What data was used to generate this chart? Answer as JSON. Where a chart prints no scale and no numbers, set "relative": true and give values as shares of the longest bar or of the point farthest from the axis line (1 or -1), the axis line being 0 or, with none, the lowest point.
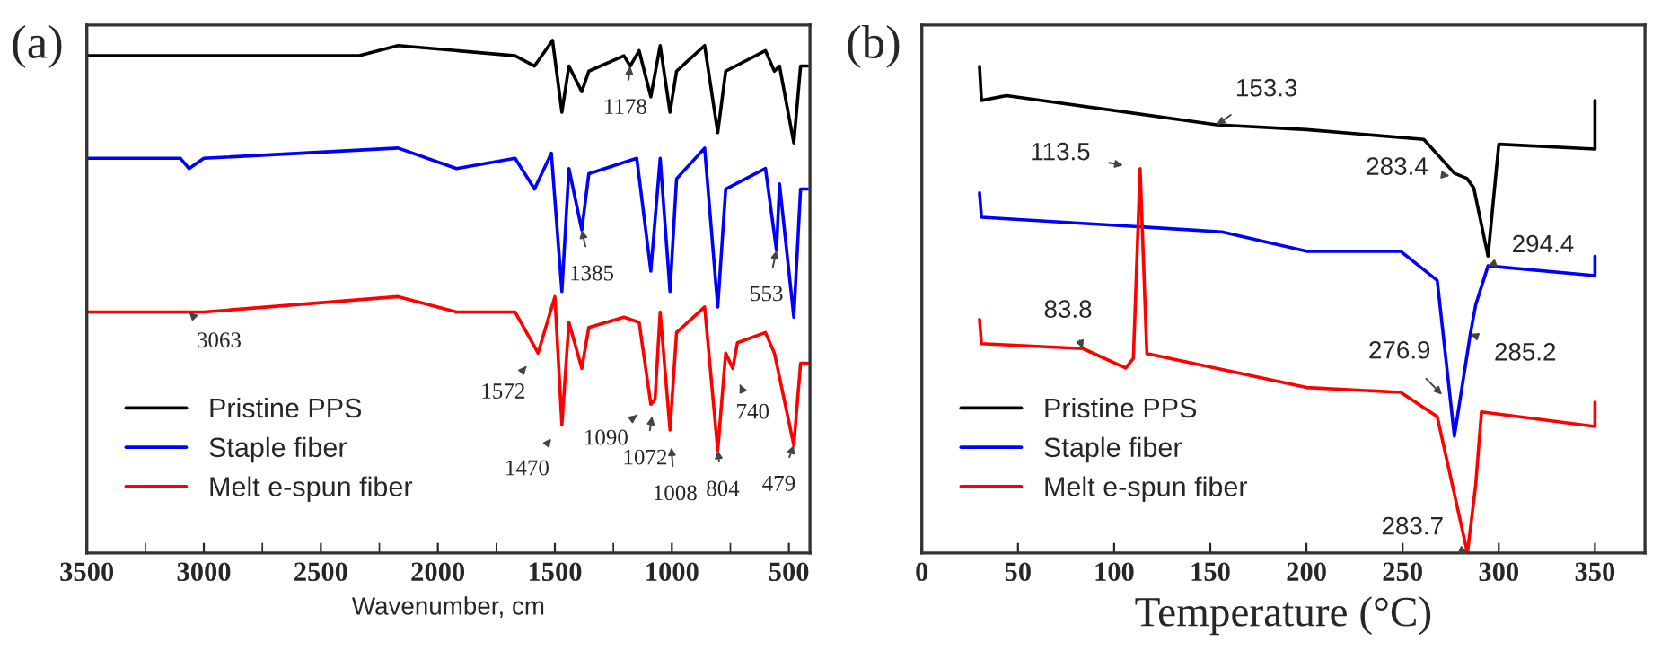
{
  "chart_data": [
    {
      "type": "line",
      "title": "(a)",
      "xlabel": "Wavenumber, cm",
      "relative": true,
      "legend": "bottom left",
      "grid": false,
      "xlim": [
        3500,
        410
      ],
      "xticks": [
        3500,
        {
          "value": 3250,
          "label": null
        },
        3000,
        {
          "value": 2750,
          "label": null
        },
        2500,
        {
          "value": 2250,
          "label": null
        },
        2000,
        {
          "value": 1750,
          "label": null
        },
        1500,
        {
          "value": 1250,
          "label": null
        },
        1000,
        {
          "value": 750,
          "label": null
        },
        500
      ],
      "series": [
        {
          "name": "Pristine PPS",
          "color": "#000000",
          "x": [
            3500,
            3100,
            2340,
            2170,
            1670,
            1587,
            1510,
            1470,
            1440,
            1385,
            1355,
            1205,
            1178,
            1140,
            1090,
            1050,
            1008,
            980,
            860,
            804,
            770,
            600,
            562,
            540,
            479,
            450,
            420
          ],
          "values": [
            0.97,
            0.97,
            0.97,
            0.99,
            0.97,
            0.95,
            1.0,
            0.86,
            0.95,
            0.9,
            0.94,
            0.97,
            0.95,
            0.98,
            0.89,
            0.99,
            0.86,
            0.94,
            0.99,
            0.82,
            0.94,
            0.98,
            0.94,
            0.95,
            0.8,
            0.95,
            0.95
          ]
        },
        {
          "name": "Staple fiber",
          "color": "#0000ff",
          "x": [
            3500,
            3100,
            3063,
            3000,
            2170,
            1920,
            1670,
            1587,
            1515,
            1470,
            1440,
            1385,
            1355,
            1150,
            1090,
            1050,
            1008,
            980,
            860,
            804,
            770,
            600,
            553,
            540,
            479,
            450,
            420
          ],
          "values": [
            0.77,
            0.77,
            0.75,
            0.77,
            0.79,
            0.75,
            0.77,
            0.71,
            0.78,
            0.51,
            0.75,
            0.63,
            0.74,
            0.77,
            0.55,
            0.77,
            0.51,
            0.73,
            0.79,
            0.48,
            0.71,
            0.75,
            0.59,
            0.72,
            0.46,
            0.71,
            0.71
          ]
        },
        {
          "name": "Melt e-spun fiber",
          "color": "#ff0000",
          "x": [
            3500,
            3100,
            3063,
            3000,
            2170,
            1920,
            1670,
            1572,
            1500,
            1470,
            1440,
            1385,
            1355,
            1205,
            1140,
            1090,
            1072,
            1050,
            1008,
            980,
            860,
            804,
            770,
            740,
            720,
            600,
            562,
            479,
            450,
            420
          ],
          "values": [
            0.47,
            0.47,
            0.47,
            0.47,
            0.5,
            0.47,
            0.47,
            0.39,
            0.5,
            0.25,
            0.45,
            0.36,
            0.44,
            0.46,
            0.45,
            0.29,
            0.3,
            0.47,
            0.24,
            0.43,
            0.48,
            0.2,
            0.39,
            0.36,
            0.41,
            0.43,
            0.39,
            0.21,
            0.37,
            0.37
          ]
        }
      ],
      "annotations": [
        {
          "text": "1178",
          "x": 1178,
          "y": 0.95
        },
        {
          "text": "1385",
          "x": 1385,
          "y": 0.63
        },
        {
          "text": "553",
          "x": 553,
          "y": 0.59
        },
        {
          "text": "3063",
          "x": 3063,
          "y": 0.47
        },
        {
          "text": "1572",
          "x": 1572,
          "y": 0.39
        },
        {
          "text": "1470",
          "x": 1470,
          "y": 0.25
        },
        {
          "text": "1090",
          "x": 1090,
          "y": 0.29
        },
        {
          "text": "1072",
          "x": 1072,
          "y": 0.3
        },
        {
          "text": "1008",
          "x": 1008,
          "y": 0.24
        },
        {
          "text": "804",
          "x": 804,
          "y": 0.2
        },
        {
          "text": "740",
          "x": 740,
          "y": 0.36
        },
        {
          "text": "479",
          "x": 479,
          "y": 0.21
        }
      ]
    },
    {
      "type": "line",
      "title": "(b)",
      "xlabel": "Temperature (°C)",
      "relative": true,
      "legend": "bottom left",
      "grid": false,
      "xlim": [
        0,
        376
      ],
      "xticks": [
        0,
        50,
        100,
        150,
        200,
        250,
        300,
        350
      ],
      "series": [
        {
          "name": "Pristine PPS",
          "color": "#000000",
          "x": [
            30,
            31,
            44,
            153.3,
            200,
            261,
            277,
            283.4,
            287,
            294.4,
            300,
            350,
            350
          ],
          "values": [
            1.0,
            0.93,
            0.94,
            0.88,
            0.87,
            0.85,
            0.78,
            0.77,
            0.75,
            0.61,
            0.84,
            0.83,
            0.93
          ]
        },
        {
          "name": "Staple fiber",
          "color": "#0000ff",
          "x": [
            30,
            31,
            156,
            200,
            249,
            268,
            276.9,
            285.2,
            288,
            294.4,
            350,
            350
          ],
          "values": [
            0.74,
            0.69,
            0.66,
            0.62,
            0.62,
            0.56,
            0.24,
            0.45,
            0.51,
            0.59,
            0.57,
            0.61
          ]
        },
        {
          "name": "Melt e-spun fiber",
          "color": "#ff0000",
          "x": [
            30,
            31,
            83.8,
            106,
            110,
            113.5,
            117,
            200,
            249,
            268,
            283.7,
            288,
            291,
            350,
            350
          ],
          "values": [
            0.48,
            0.43,
            0.42,
            0.38,
            0.4,
            0.79,
            0.41,
            0.34,
            0.33,
            0.28,
            0.0,
            0.14,
            0.29,
            0.26,
            0.31
          ]
        }
      ],
      "annotations": [
        {
          "text": "153.3",
          "x": 153.3,
          "y": 0.88
        },
        {
          "text": "283.4",
          "x": 283.4,
          "y": 0.77
        },
        {
          "text": "294.4",
          "x": 294.4,
          "y": 0.59
        },
        {
          "text": "113.5",
          "x": 113.5,
          "y": 0.79
        },
        {
          "text": "83.8",
          "x": 83.8,
          "y": 0.42
        },
        {
          "text": "276.9",
          "x": 276.9,
          "y": 0.3
        },
        {
          "text": "285.2",
          "x": 285.2,
          "y": 0.45
        },
        {
          "text": "283.7",
          "x": 283.7,
          "y": 0.0
        }
      ]
    }
  ]
}
